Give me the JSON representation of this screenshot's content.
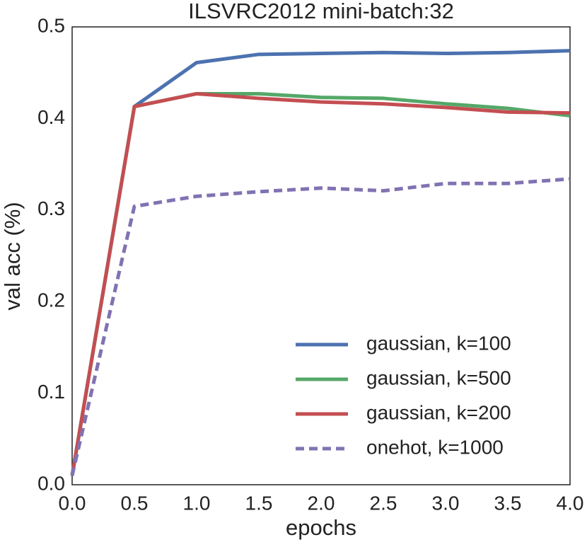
{
  "chart_data": {
    "type": "line",
    "title": "ILSVRC2012 mini-batch:32",
    "x_label": "epochs",
    "y_label": "val acc (%)",
    "x": [
      0,
      0.5,
      1.0,
      1.5,
      2.0,
      2.5,
      3.0,
      3.5,
      4.0
    ],
    "series": [
      {
        "name": "gaussian, k=100",
        "color": "#4c72b0",
        "linestyle": "solid",
        "values": [
          0.01,
          0.413,
          0.461,
          0.47,
          0.471,
          0.472,
          0.471,
          0.472,
          0.474
        ]
      },
      {
        "name": "gaussian, k=500",
        "color": "#55a868",
        "linestyle": "solid",
        "values": [
          0.01,
          0.413,
          0.427,
          0.427,
          0.423,
          0.422,
          0.416,
          0.411,
          0.403
        ]
      },
      {
        "name": "gaussian, k=200",
        "color": "#c44e52",
        "linestyle": "solid",
        "values": [
          0.01,
          0.413,
          0.427,
          0.422,
          0.418,
          0.416,
          0.412,
          0.407,
          0.406
        ]
      },
      {
        "name": "onehot, k=1000",
        "color": "#8172b2",
        "linestyle": "dashed",
        "values": [
          0.01,
          0.304,
          0.315,
          0.32,
          0.324,
          0.321,
          0.329,
          0.329,
          0.334
        ]
      }
    ],
    "xlim": [
      0,
      4.0
    ],
    "xticks": [
      {
        "value": 0,
        "label": "0.0"
      },
      0.5,
      {
        "value": 1,
        "label": "1.0"
      },
      1.5,
      {
        "value": 2,
        "label": "2.0"
      },
      2.5,
      {
        "value": 3,
        "label": "3.0"
      },
      3.5,
      {
        "value": 4,
        "label": "4.0"
      }
    ],
    "ylim": [
      0,
      0.5
    ],
    "yticks": [
      {
        "value": 0,
        "label": "0.0"
      },
      0.1,
      0.2,
      0.3,
      0.4,
      0.5
    ],
    "grid": false,
    "legend": "lower right"
  }
}
